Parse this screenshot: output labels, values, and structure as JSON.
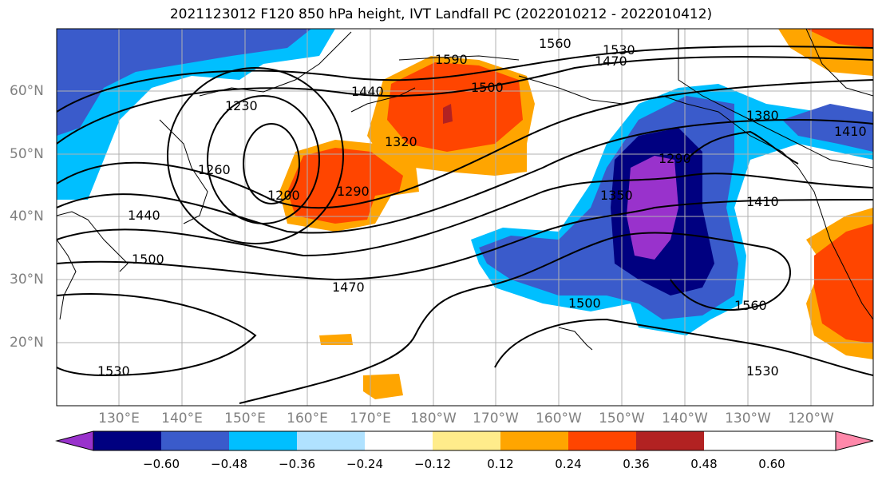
{
  "title": "2021123012 F120 850 hPa height, IVT Landfall PC (2022010212 - 2022010412)",
  "map": {
    "lat_labels": [
      "60°N",
      "50°N",
      "40°N",
      "30°N",
      "20°N"
    ],
    "lon_labels": [
      "130°E",
      "140°E",
      "150°E",
      "160°E",
      "170°E",
      "180°W",
      "170°W",
      "160°W",
      "150°W",
      "140°W",
      "130°W",
      "120°W"
    ],
    "contour_labels": [
      "1560",
      "1530",
      "1470",
      "1590",
      "1500",
      "1440",
      "1230",
      "1320",
      "1200",
      "1290",
      "1260",
      "1440",
      "1500",
      "1470",
      "1290",
      "1350",
      "1410",
      "1380",
      "1410",
      "1500",
      "1560",
      "1530",
      "1530"
    ]
  },
  "colorbar": {
    "colors": [
      "#9932CC",
      "#000080",
      "#3A5BCB",
      "#00BFFF",
      "#B0E2FF",
      "#FFFFFF",
      "#FFEC8B",
      "#FFA500",
      "#FF4500",
      "#B22222",
      "#FF88AA"
    ],
    "ticks": [
      "−0.60",
      "−0.48",
      "−0.36",
      "−0.24",
      "−0.12",
      "0.12",
      "0.24",
      "0.36",
      "0.48",
      "0.60"
    ]
  }
}
